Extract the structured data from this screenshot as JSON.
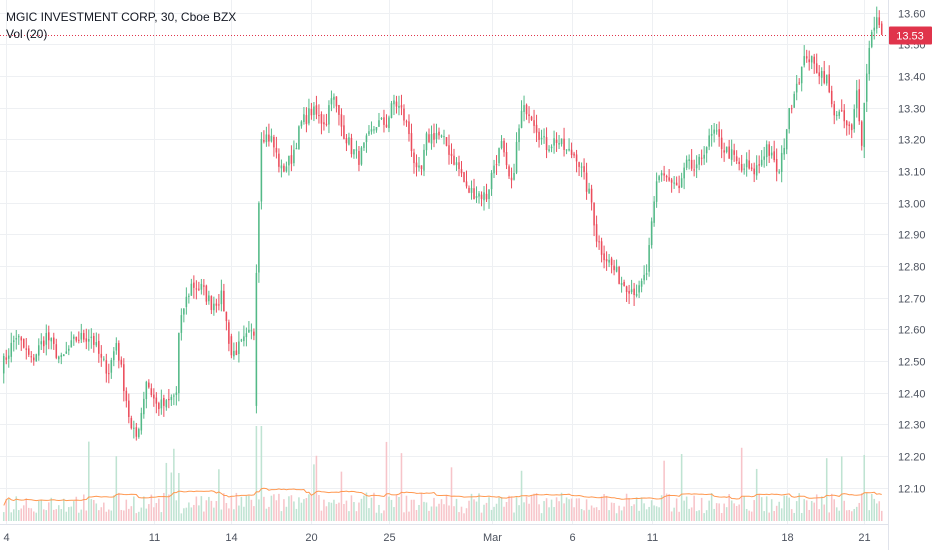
{
  "header": {
    "symbol_line": "MGIC INVESTMENT CORP, 30, Cboe BZX",
    "indicator_line": "Vol (20)"
  },
  "price_label": "13.53",
  "colors": {
    "up": "#53b987",
    "down": "#eb4d5c",
    "up_volume": "#bfe3d2",
    "down_volume": "#f7c4c9",
    "volume_ma": "#ff9850",
    "price_line": "#e0344b",
    "grid": "#eef0f3",
    "axis_text": "#4c525e"
  },
  "chart_data": {
    "type": "candlestick",
    "title": "MGIC INVESTMENT CORP, 30, Cboe BZX",
    "ylim": [
      11.985,
      13.64
    ],
    "y_ticks": [
      "13.60",
      "13.50",
      "13.40",
      "13.30",
      "13.20",
      "13.10",
      "13.00",
      "12.90",
      "12.80",
      "12.70",
      "12.60",
      "12.50",
      "12.40",
      "12.30",
      "12.20",
      "12.10"
    ],
    "x_tick_labels": [
      {
        "label": "4",
        "index": 2
      },
      {
        "label": "11",
        "index": 61
      },
      {
        "label": "14",
        "index": 92
      },
      {
        "label": "20",
        "index": 124
      },
      {
        "label": "25",
        "index": 155
      },
      {
        "label": "Mar",
        "index": 196
      },
      {
        "label": "6",
        "index": 228
      },
      {
        "label": "11",
        "index": 260
      },
      {
        "label": "18",
        "index": 314
      },
      {
        "label": "21",
        "index": 345
      }
    ],
    "last_price": 13.53,
    "grid": true,
    "series": [
      {
        "name": "Vol (20)",
        "type": "line",
        "ref": "volume_ma"
      }
    ],
    "anchors": [
      [
        0,
        12.48
      ],
      [
        6,
        12.58
      ],
      [
        12,
        12.5
      ],
      [
        18,
        12.58
      ],
      [
        24,
        12.5
      ],
      [
        30,
        12.57
      ],
      [
        36,
        12.58
      ],
      [
        40,
        12.5
      ],
      [
        43,
        12.47
      ],
      [
        46,
        12.56
      ],
      [
        48,
        12.47
      ],
      [
        50,
        12.38
      ],
      [
        52,
        12.28
      ],
      [
        54,
        12.26
      ],
      [
        56,
        12.34
      ],
      [
        58,
        12.44
      ],
      [
        62,
        12.36
      ],
      [
        66,
        12.36
      ],
      [
        70,
        12.4
      ],
      [
        71,
        12.58
      ],
      [
        73,
        12.67
      ],
      [
        76,
        12.74
      ],
      [
        80,
        12.73
      ],
      [
        84,
        12.68
      ],
      [
        88,
        12.7
      ],
      [
        89,
        12.67
      ],
      [
        92,
        12.52
      ],
      [
        96,
        12.55
      ],
      [
        99,
        12.58
      ],
      [
        101,
        12.59
      ],
      [
        102,
        12.8
      ],
      [
        104,
        13.22
      ],
      [
        108,
        13.2
      ],
      [
        112,
        13.1
      ],
      [
        116,
        13.14
      ],
      [
        120,
        13.25
      ],
      [
        124,
        13.29
      ],
      [
        128,
        13.26
      ],
      [
        130,
        13.26
      ],
      [
        132,
        13.35
      ],
      [
        136,
        13.24
      ],
      [
        140,
        13.17
      ],
      [
        143,
        13.14
      ],
      [
        146,
        13.19
      ],
      [
        150,
        13.25
      ],
      [
        154,
        13.25
      ],
      [
        157,
        13.32
      ],
      [
        160,
        13.29
      ],
      [
        163,
        13.22
      ],
      [
        166,
        13.09
      ],
      [
        168,
        13.1
      ],
      [
        170,
        13.2
      ],
      [
        174,
        13.22
      ],
      [
        178,
        13.18
      ],
      [
        182,
        13.12
      ],
      [
        184,
        13.09
      ],
      [
        186,
        13.04
      ],
      [
        190,
        13.03
      ],
      [
        194,
        13.02
      ],
      [
        197,
        13.12
      ],
      [
        200,
        13.18
      ],
      [
        202,
        13.1
      ],
      [
        204,
        13.05
      ],
      [
        206,
        13.18
      ],
      [
        208,
        13.28
      ],
      [
        210,
        13.3
      ],
      [
        212,
        13.28
      ],
      [
        214,
        13.24
      ],
      [
        216,
        13.2
      ],
      [
        218,
        13.18
      ],
      [
        222,
        13.2
      ],
      [
        226,
        13.16
      ],
      [
        230,
        13.15
      ],
      [
        234,
        13.05
      ],
      [
        236,
        13.0
      ],
      [
        238,
        12.89
      ],
      [
        240,
        12.85
      ],
      [
        244,
        12.8
      ],
      [
        248,
        12.75
      ],
      [
        252,
        12.73
      ],
      [
        255,
        12.72
      ],
      [
        258,
        12.78
      ],
      [
        260,
        12.92
      ],
      [
        262,
        13.06
      ],
      [
        264,
        13.1
      ],
      [
        268,
        13.06
      ],
      [
        271,
        13.04
      ],
      [
        274,
        13.12
      ],
      [
        278,
        13.1
      ],
      [
        281,
        13.17
      ],
      [
        285,
        13.22
      ],
      [
        289,
        13.17
      ],
      [
        292,
        13.15
      ],
      [
        296,
        13.1
      ],
      [
        298,
        13.12
      ],
      [
        300,
        13.09
      ],
      [
        303,
        13.12
      ],
      [
        306,
        13.18
      ],
      [
        309,
        13.12
      ],
      [
        311,
        13.09
      ],
      [
        314,
        13.24
      ],
      [
        317,
        13.36
      ],
      [
        320,
        13.42
      ],
      [
        322,
        13.47
      ],
      [
        325,
        13.43
      ],
      [
        328,
        13.41
      ],
      [
        330,
        13.39
      ],
      [
        332,
        13.3
      ],
      [
        336,
        13.27
      ],
      [
        338,
        13.24
      ],
      [
        340,
        13.22
      ],
      [
        342,
        13.35
      ],
      [
        344,
        13.2
      ],
      [
        346,
        13.42
      ],
      [
        348,
        13.55
      ],
      [
        350,
        13.58
      ],
      [
        352,
        13.53
      ]
    ],
    "volume": {
      "min": 0,
      "max": 1.0,
      "unit": "relative"
    }
  }
}
